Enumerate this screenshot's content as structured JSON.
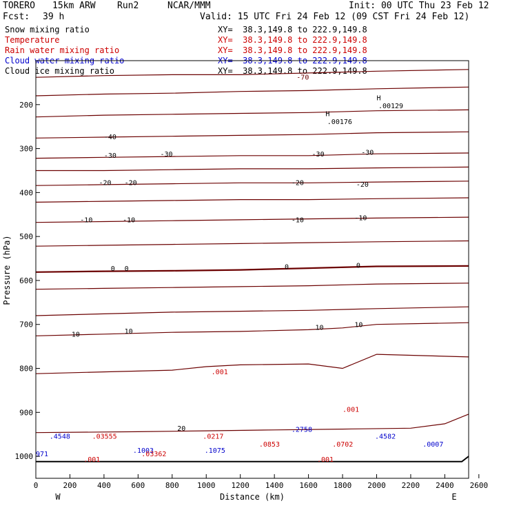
{
  "header": {
    "model": "TORERO",
    "resolution": "15km ARW",
    "run": "Run2",
    "org": "NCAR/MMM",
    "init": "Init: 00 UTC Thu 23 Feb 12",
    "fcst_label": "Fcst:",
    "fcst_value": "39 h",
    "valid": "Valid: 15 UTC Fri 24 Feb 12 (09 CST Fri 24 Feb 12)"
  },
  "fields": [
    {
      "name": "Snow mixing ratio",
      "color": "#000000",
      "xy": "XY=  38.3,149.8 to 222.9,149.8"
    },
    {
      "name": "Temperature",
      "color": "#cc0000",
      "xy": "XY=  38.3,149.8 to 222.9,149.8"
    },
    {
      "name": "Rain water mixing ratio",
      "color": "#cc0000",
      "xy": "XY=  38.3,149.8 to 222.9,149.8"
    },
    {
      "name": "Cloud water mixing ratio",
      "color": "#0000cc",
      "xy": "XY=  38.3,149.8 to 222.9,149.8"
    },
    {
      "name": "Cloud ice mixing ratio",
      "color": "#000000",
      "xy": "XY=  38.3,149.8 to 222.9,149.8"
    }
  ],
  "chart_data": {
    "type": "contour cross-section",
    "xlabel": "Distance (km)",
    "ylabel": "Pressure (hPa)",
    "xlim": [
      0,
      2540
    ],
    "ylim": [
      1050,
      100
    ],
    "x_ticks": [
      0,
      200,
      400,
      600,
      800,
      1000,
      1200,
      1400,
      1600,
      1800,
      2000,
      2200,
      2400,
      2600
    ],
    "y_ticks": [
      200,
      300,
      400,
      500,
      600,
      700,
      800,
      900,
      1000
    ],
    "x_end_labels": {
      "left": "W",
      "right": "E"
    },
    "temperature_isotherms": [
      {
        "label": "-70",
        "x_km": [
          0,
          400,
          800,
          1200,
          1600,
          1800,
          2000,
          2540
        ],
        "p": [
          138,
          134,
          132,
          132,
          128,
          126,
          124,
          120
        ]
      },
      {
        "label": "",
        "x_km": [
          0,
          400,
          800,
          1200,
          1600,
          2000,
          2540
        ],
        "p": [
          180,
          176,
          174,
          170,
          168,
          164,
          160
        ]
      },
      {
        "label": "",
        "x_km": [
          0,
          400,
          800,
          1200,
          1600,
          2000,
          2540
        ],
        "p": [
          228,
          224,
          222,
          220,
          218,
          214,
          212
        ]
      },
      {
        "label": "-40",
        "x_km": [
          0,
          400,
          800,
          1200,
          1600,
          2000,
          2540
        ],
        "p": [
          276,
          274,
          272,
          270,
          268,
          264,
          262
        ]
      },
      {
        "label": "-30",
        "x_km": [
          0,
          400,
          800,
          1200,
          1600,
          2000,
          2540
        ],
        "p": [
          322,
          320,
          318,
          316,
          316,
          312,
          310
        ]
      },
      {
        "label": "",
        "x_km": [
          0,
          400,
          800,
          1200,
          1600,
          2000,
          2540
        ],
        "p": [
          350,
          350,
          348,
          346,
          346,
          344,
          342
        ]
      },
      {
        "label": "-20",
        "x_km": [
          0,
          400,
          800,
          1200,
          1600,
          2000,
          2540
        ],
        "p": [
          384,
          382,
          380,
          378,
          378,
          376,
          374
        ]
      },
      {
        "label": "",
        "x_km": [
          0,
          400,
          800,
          1200,
          1600,
          2000,
          2540
        ],
        "p": [
          422,
          420,
          418,
          416,
          416,
          414,
          412
        ]
      },
      {
        "label": "-10",
        "x_km": [
          0,
          400,
          800,
          1200,
          1600,
          2000,
          2540
        ],
        "p": [
          468,
          466,
          464,
          462,
          460,
          458,
          456
        ]
      },
      {
        "label": "",
        "x_km": [
          0,
          400,
          800,
          1200,
          1600,
          2000,
          2540
        ],
        "p": [
          522,
          520,
          518,
          516,
          514,
          512,
          510
        ]
      },
      {
        "label": "0",
        "bold": true,
        "x_km": [
          0,
          400,
          800,
          1200,
          1600,
          2000,
          2540
        ],
        "p": [
          581,
          579,
          578,
          576,
          572,
          568,
          567
        ]
      },
      {
        "label": "",
        "x_km": [
          0,
          400,
          800,
          1200,
          1600,
          2000,
          2540
        ],
        "p": [
          620,
          618,
          616,
          614,
          612,
          608,
          606
        ]
      },
      {
        "label": "",
        "x_km": [
          0,
          400,
          800,
          1200,
          1600,
          2000,
          2540
        ],
        "p": [
          680,
          676,
          672,
          670,
          668,
          664,
          660
        ]
      },
      {
        "label": "10",
        "x_km": [
          0,
          400,
          800,
          1200,
          1600,
          1800,
          2000,
          2540
        ],
        "p": [
          726,
          722,
          718,
          716,
          712,
          708,
          700,
          696
        ]
      },
      {
        "label": "",
        "x_km": [
          0,
          400,
          800,
          1000,
          1200,
          1600,
          1800,
          2000,
          2540
        ],
        "p": [
          812,
          808,
          804,
          796,
          792,
          790,
          800,
          768,
          774
        ]
      },
      {
        "label": "",
        "x_km": [
          0,
          600,
          1000,
          1400,
          1800,
          2200,
          2400,
          2540
        ],
        "p": [
          946,
          944,
          942,
          940,
          938,
          936,
          926,
          904
        ]
      }
    ],
    "labels": [
      {
        "text": "-70",
        "x_km": 1530,
        "p": 143,
        "color": "#6b0000"
      },
      {
        "text": "-40",
        "x_km": 400,
        "p": 279,
        "color": "#000000"
      },
      {
        "text": "-30",
        "x_km": 400,
        "p": 321,
        "color": "#000000"
      },
      {
        "text": "-30",
        "x_km": 730,
        "p": 318,
        "color": "#000000"
      },
      {
        "text": "-30",
        "x_km": 1620,
        "p": 318,
        "color": "#000000"
      },
      {
        "text": "-30",
        "x_km": 1910,
        "p": 314,
        "color": "#000000"
      },
      {
        "text": "-20",
        "x_km": 370,
        "p": 383,
        "color": "#000000"
      },
      {
        "text": "-20",
        "x_km": 520,
        "p": 383,
        "color": "#000000"
      },
      {
        "text": "-20",
        "x_km": 1500,
        "p": 383,
        "color": "#000000"
      },
      {
        "text": "-20",
        "x_km": 1880,
        "p": 387,
        "color": "#000000"
      },
      {
        "text": "-10",
        "x_km": 260,
        "p": 468,
        "color": "#000000"
      },
      {
        "text": "-10",
        "x_km": 510,
        "p": 468,
        "color": "#000000"
      },
      {
        "text": "-10",
        "x_km": 1500,
        "p": 468,
        "color": "#000000"
      },
      {
        "text": "-10",
        "x_km": 1870,
        "p": 463,
        "color": "#000000"
      },
      {
        "text": "0",
        "x_km": 440,
        "p": 578,
        "color": "#000000"
      },
      {
        "text": "0",
        "x_km": 520,
        "p": 578,
        "color": "#000000"
      },
      {
        "text": "0",
        "x_km": 1460,
        "p": 574,
        "color": "#000000"
      },
      {
        "text": "0",
        "x_km": 1880,
        "p": 571,
        "color": "#000000"
      },
      {
        "text": "10",
        "x_km": 210,
        "p": 728,
        "color": "#000000"
      },
      {
        "text": "10",
        "x_km": 520,
        "p": 721,
        "color": "#000000"
      },
      {
        "text": "10",
        "x_km": 1640,
        "p": 712,
        "color": "#000000"
      },
      {
        "text": "10",
        "x_km": 1870,
        "p": 706,
        "color": "#000000"
      },
      {
        "text": "20",
        "x_km": 830,
        "p": 942,
        "color": "#000000"
      },
      {
        "text": "H",
        "x_km": 2000,
        "p": 190,
        "color": "#000000"
      },
      {
        "text": ".00129",
        "x_km": 2010,
        "p": 208,
        "color": "#000000"
      },
      {
        "text": "H",
        "x_km": 1700,
        "p": 226,
        "color": "#000000"
      },
      {
        "text": ".00176",
        "x_km": 1710,
        "p": 244,
        "color": "#000000"
      },
      {
        "text": ".001",
        "x_km": 1030,
        "p": 813,
        "color": "#cc0000"
      },
      {
        "text": ".001",
        "x_km": 1800,
        "p": 899,
        "color": "#cc0000"
      },
      {
        "text": ".001",
        "x_km": 280,
        "p": 1012,
        "color": "#cc0000"
      },
      {
        "text": ".001",
        "x_km": 1650,
        "p": 1012,
        "color": "#cc0000"
      },
      {
        "text": ".4548",
        "x_km": 80,
        "p": 960,
        "color": "#0000cc"
      },
      {
        "text": ".03555",
        "x_km": 330,
        "p": 960,
        "color": "#cc0000"
      },
      {
        "text": ".1003",
        "x_km": 570,
        "p": 992,
        "color": "#0000cc"
      },
      {
        "text": ".03362",
        "x_km": 620,
        "p": 1000,
        "color": "#cc0000"
      },
      {
        "text": ".0217",
        "x_km": 980,
        "p": 960,
        "color": "#cc0000"
      },
      {
        "text": ".1075",
        "x_km": 990,
        "p": 992,
        "color": "#0000cc"
      },
      {
        "text": ".0853",
        "x_km": 1310,
        "p": 978,
        "color": "#cc0000"
      },
      {
        "text": ".2758",
        "x_km": 1500,
        "p": 944,
        "color": "#0000cc"
      },
      {
        "text": ".0702",
        "x_km": 1740,
        "p": 978,
        "color": "#cc0000"
      },
      {
        "text": ".4582",
        "x_km": 1990,
        "p": 960,
        "color": "#0000cc"
      },
      {
        "text": ".0007",
        "x_km": 2270,
        "p": 978,
        "color": "#0000cc"
      },
      {
        "text": "971",
        "x_km": 0,
        "p": 1000,
        "color": "#0000cc"
      }
    ],
    "ground_pressure_hPa": {
      "x_km": [
        0,
        2500,
        2540
      ],
      "p": [
        1012,
        1012,
        1000
      ]
    }
  }
}
